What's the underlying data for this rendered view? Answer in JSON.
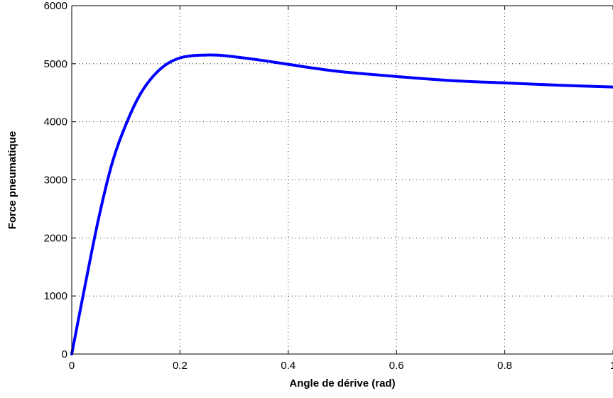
{
  "chart_data": {
    "type": "line",
    "title": "",
    "xlabel": "Angle de dérive (rad)",
    "ylabel": "Force pneumatique",
    "xlim": [
      0,
      1
    ],
    "ylim": [
      0,
      6000
    ],
    "x_ticks": [
      0,
      0.2,
      0.4,
      0.6,
      0.8,
      1
    ],
    "x_tick_labels": [
      "0",
      "0.2",
      "0.4",
      "0.6",
      "0.8",
      "1"
    ],
    "y_ticks": [
      0,
      1000,
      2000,
      3000,
      4000,
      5000,
      6000
    ],
    "y_tick_labels": [
      "0",
      "1000",
      "2000",
      "3000",
      "4000",
      "5000",
      "6000"
    ],
    "grid": true,
    "series": [
      {
        "color": "#0000ff",
        "x": [
          0,
          0.025,
          0.05,
          0.075,
          0.1,
          0.125,
          0.15,
          0.175,
          0.2,
          0.225,
          0.25,
          0.275,
          0.3,
          0.35,
          0.4,
          0.45,
          0.5,
          0.6,
          0.7,
          0.8,
          0.9,
          1.0
        ],
        "y": [
          0,
          1200,
          2350,
          3300,
          3950,
          4450,
          4780,
          4990,
          5100,
          5140,
          5150,
          5145,
          5120,
          5060,
          4990,
          4920,
          4860,
          4780,
          4710,
          4670,
          4630,
          4600
        ]
      }
    ]
  }
}
